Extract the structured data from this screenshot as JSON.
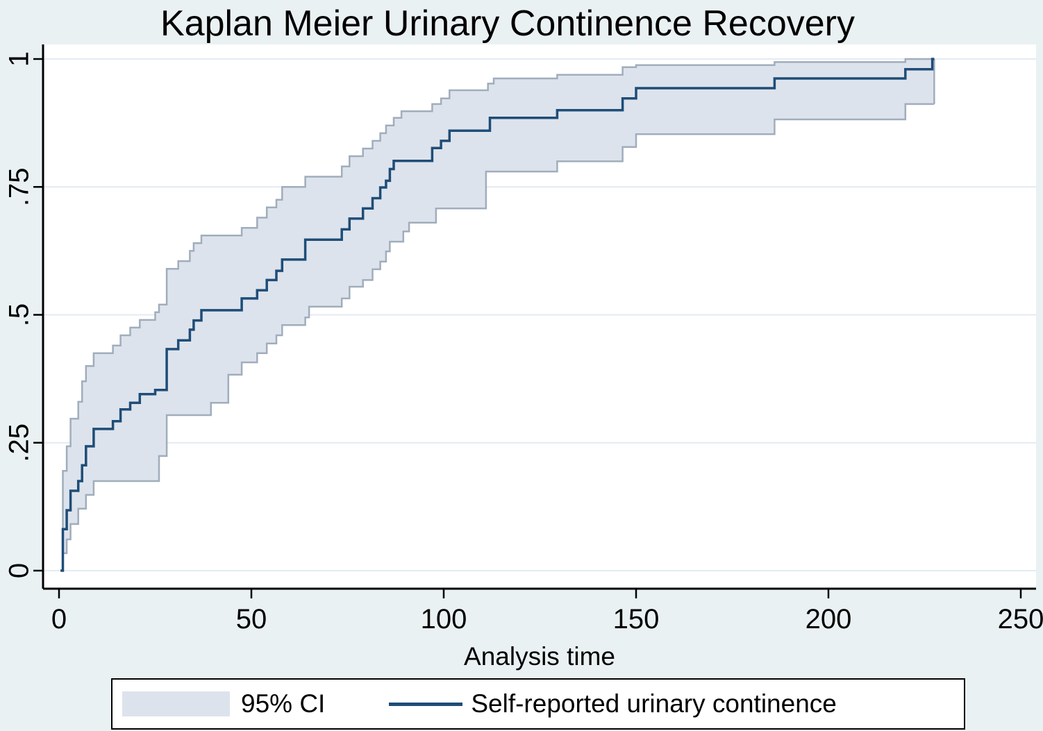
{
  "title": "Kaplan Meier Urinary Continence Recovery",
  "axes": {
    "x_label": "Analysis time"
  },
  "legend": {
    "ci_label": "95% CI",
    "series_label": "Self-reported urinary continence"
  },
  "colors": {
    "page_background": "#eaf1f3",
    "plot_background": "#ffffff",
    "gridline": "#e3ebf2",
    "axis": "#000000",
    "km_line": "#1e4d78",
    "ci_fill": "#dde3ec",
    "ci_edge": "#a0adbc",
    "text": "#000000"
  },
  "chart_data": {
    "type": "line",
    "subtype": "kaplan-meier-step",
    "title": "Kaplan Meier Urinary Continence Recovery",
    "xlabel": "Analysis time",
    "ylabel": "",
    "xlim": [
      0,
      250
    ],
    "ylim": [
      0,
      1
    ],
    "x_ticks": [
      0,
      50,
      100,
      150,
      200,
      250
    ],
    "x_tick_labels": [
      "0",
      "50",
      "100",
      "150",
      "200",
      "250"
    ],
    "y_ticks": [
      0,
      0.25,
      0.5,
      0.75,
      1
    ],
    "y_tick_labels": [
      "0",
      ".25",
      ".5",
      ".75",
      "1"
    ],
    "grid": "horizontal",
    "legend_position": "bottom",
    "t_end": 227.5,
    "series": [
      {
        "name": "Self-reported urinary continence",
        "role": "estimate",
        "points": [
          [
            0.4,
            0
          ],
          [
            1,
            0.081
          ],
          [
            2,
            0.118
          ],
          [
            3,
            0.156
          ],
          [
            5,
            0.175
          ],
          [
            6,
            0.206
          ],
          [
            7,
            0.243
          ],
          [
            9,
            0.277
          ],
          [
            14,
            0.292
          ],
          [
            16,
            0.315
          ],
          [
            18.5,
            0.328
          ],
          [
            21,
            0.345
          ],
          [
            25,
            0.353
          ],
          [
            28,
            0.433
          ],
          [
            31,
            0.45
          ],
          [
            34,
            0.471
          ],
          [
            35,
            0.489
          ],
          [
            37,
            0.509
          ],
          [
            47.5,
            0.532
          ],
          [
            51.5,
            0.548
          ],
          [
            54,
            0.568
          ],
          [
            56.5,
            0.586
          ],
          [
            58,
            0.608
          ],
          [
            64,
            0.647
          ],
          [
            73.5,
            0.667
          ],
          [
            75.5,
            0.688
          ],
          [
            79,
            0.708
          ],
          [
            81.5,
            0.728
          ],
          [
            83.5,
            0.749
          ],
          [
            85,
            0.762
          ],
          [
            86,
            0.785
          ],
          [
            87,
            0.801
          ],
          [
            97,
            0.826
          ],
          [
            99.3,
            0.84
          ],
          [
            101.5,
            0.86
          ],
          [
            112,
            0.885
          ],
          [
            129.5,
            0.9
          ],
          [
            146.5,
            0.923
          ],
          [
            150,
            0.943
          ],
          [
            186,
            0.962
          ],
          [
            220,
            0.98
          ],
          [
            227,
            1.0
          ]
        ]
      },
      {
        "name": "95% CI upper",
        "role": "ci-upper",
        "points": [
          [
            0.4,
            0
          ],
          [
            1,
            0.195
          ],
          [
            2,
            0.243
          ],
          [
            3,
            0.297
          ],
          [
            5,
            0.33
          ],
          [
            6,
            0.37
          ],
          [
            7,
            0.4
          ],
          [
            9,
            0.425
          ],
          [
            14,
            0.44
          ],
          [
            16,
            0.46
          ],
          [
            18.5,
            0.475
          ],
          [
            21,
            0.49
          ],
          [
            25,
            0.505
          ],
          [
            26,
            0.52
          ],
          [
            28,
            0.59
          ],
          [
            31,
            0.605
          ],
          [
            34,
            0.625
          ],
          [
            35,
            0.64
          ],
          [
            37,
            0.655
          ],
          [
            47.5,
            0.67
          ],
          [
            51.5,
            0.69
          ],
          [
            54,
            0.71
          ],
          [
            56.5,
            0.725
          ],
          [
            58,
            0.75
          ],
          [
            64,
            0.77
          ],
          [
            73.5,
            0.79
          ],
          [
            75.5,
            0.81
          ],
          [
            79,
            0.825
          ],
          [
            81.5,
            0.84
          ],
          [
            83.5,
            0.855
          ],
          [
            85,
            0.87
          ],
          [
            87,
            0.885
          ],
          [
            89,
            0.898
          ],
          [
            97,
            0.912
          ],
          [
            99.3,
            0.923
          ],
          [
            101.5,
            0.939
          ],
          [
            111.5,
            0.952
          ],
          [
            113,
            0.962
          ],
          [
            129.5,
            0.969
          ],
          [
            146.5,
            0.984
          ],
          [
            150,
            0.988
          ],
          [
            186,
            0.994
          ],
          [
            220,
            1.0
          ]
        ]
      },
      {
        "name": "95% CI lower",
        "role": "ci-lower",
        "points": [
          [
            0.4,
            0
          ],
          [
            1,
            0.034
          ],
          [
            2,
            0.061
          ],
          [
            3,
            0.091
          ],
          [
            5,
            0.121
          ],
          [
            7,
            0.148
          ],
          [
            9,
            0.175
          ],
          [
            26,
            0.224
          ],
          [
            28,
            0.304
          ],
          [
            39.5,
            0.328
          ],
          [
            44,
            0.383
          ],
          [
            47.5,
            0.407
          ],
          [
            51.5,
            0.425
          ],
          [
            54,
            0.444
          ],
          [
            56.5,
            0.46
          ],
          [
            58,
            0.48
          ],
          [
            64,
            0.495
          ],
          [
            65,
            0.516
          ],
          [
            73.5,
            0.532
          ],
          [
            75.5,
            0.555
          ],
          [
            79,
            0.568
          ],
          [
            81.5,
            0.589
          ],
          [
            83.5,
            0.604
          ],
          [
            85,
            0.624
          ],
          [
            86,
            0.643
          ],
          [
            89.5,
            0.663
          ],
          [
            91,
            0.68
          ],
          [
            98,
            0.708
          ],
          [
            111,
            0.78
          ],
          [
            129.5,
            0.8
          ],
          [
            146.5,
            0.828
          ],
          [
            150,
            0.853
          ],
          [
            186,
            0.882
          ],
          [
            220,
            0.912
          ]
        ]
      }
    ]
  }
}
